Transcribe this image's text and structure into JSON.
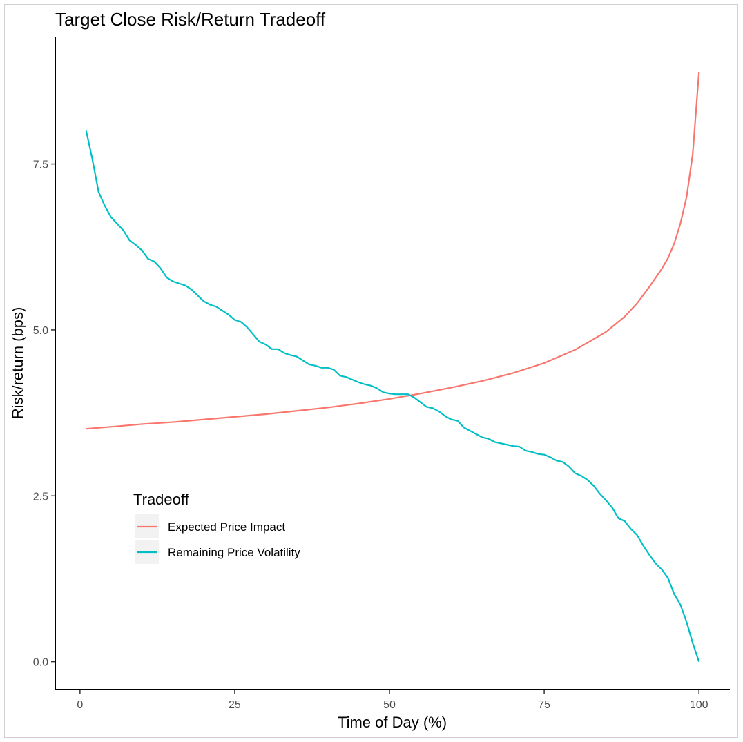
{
  "chart_data": {
    "type": "line",
    "title": "Target Close Risk/Return Tradeoff",
    "xlabel": "Time of Day (%)",
    "ylabel": "Risk/return (bps)",
    "xlim": [
      -4,
      105
    ],
    "ylim": [
      -0.42,
      9.42
    ],
    "x_ticks": [
      0,
      25,
      50,
      75,
      100
    ],
    "x_tick_labels": [
      "0",
      "25",
      "50",
      "75",
      "100"
    ],
    "y_ticks": [
      0,
      2.5,
      5,
      7.5
    ],
    "y_tick_labels": [
      "0.0",
      "2.5",
      "5.0",
      "7.5"
    ],
    "grid": false,
    "legend": {
      "title": "Tradeoff",
      "position": "bottom-left inside"
    },
    "series": [
      {
        "name": "Expected Price Impact",
        "color": "#F8766D",
        "x": [
          1,
          5,
          10,
          15,
          20,
          25,
          30,
          35,
          40,
          45,
          50,
          55,
          60,
          65,
          70,
          75,
          80,
          85,
          88,
          90,
          92,
          94,
          95,
          96,
          97,
          98,
          99,
          100
        ],
        "y": [
          3.51,
          3.54,
          3.58,
          3.61,
          3.65,
          3.69,
          3.73,
          3.78,
          3.83,
          3.89,
          3.96,
          4.04,
          4.13,
          4.23,
          4.35,
          4.5,
          4.7,
          4.97,
          5.2,
          5.4,
          5.65,
          5.92,
          6.08,
          6.3,
          6.6,
          7.0,
          7.65,
          8.88
        ]
      },
      {
        "name": "Remaining Price Volatility",
        "color": "#00BFC4",
        "x": [
          1,
          2,
          3,
          4,
          5,
          6,
          7,
          8,
          9,
          10,
          11,
          12,
          13,
          14,
          15,
          16,
          17,
          18,
          19,
          20,
          21,
          22,
          23,
          24,
          25,
          26,
          27,
          28,
          29,
          30,
          31,
          32,
          33,
          34,
          35,
          36,
          37,
          38,
          39,
          40,
          41,
          42,
          43,
          44,
          45,
          46,
          47,
          48,
          49,
          50,
          51,
          52,
          53,
          54,
          55,
          56,
          57,
          58,
          59,
          60,
          61,
          62,
          63,
          64,
          65,
          66,
          67,
          68,
          69,
          70,
          71,
          72,
          73,
          74,
          75,
          76,
          77,
          78,
          79,
          80,
          81,
          82,
          83,
          84,
          85,
          86,
          87,
          88,
          89,
          90,
          91,
          92,
          93,
          94,
          95,
          96,
          97,
          98,
          99,
          100
        ],
        "y": [
          8.0,
          7.57,
          7.08,
          6.87,
          6.7,
          6.6,
          6.5,
          6.35,
          6.28,
          6.2,
          6.07,
          6.03,
          5.93,
          5.79,
          5.73,
          5.7,
          5.67,
          5.61,
          5.52,
          5.43,
          5.38,
          5.35,
          5.29,
          5.23,
          5.15,
          5.12,
          5.04,
          4.93,
          4.82,
          4.78,
          4.71,
          4.71,
          4.65,
          4.62,
          4.6,
          4.54,
          4.48,
          4.46,
          4.43,
          4.43,
          4.4,
          4.31,
          4.29,
          4.25,
          4.21,
          4.18,
          4.16,
          4.12,
          4.06,
          4.04,
          4.03,
          4.03,
          4.03,
          3.98,
          3.91,
          3.84,
          3.82,
          3.77,
          3.7,
          3.65,
          3.63,
          3.53,
          3.48,
          3.43,
          3.38,
          3.36,
          3.31,
          3.29,
          3.27,
          3.25,
          3.24,
          3.18,
          3.16,
          3.13,
          3.12,
          3.08,
          3.03,
          3.01,
          2.94,
          2.84,
          2.8,
          2.74,
          2.65,
          2.53,
          2.43,
          2.32,
          2.16,
          2.12,
          2.0,
          1.91,
          1.75,
          1.61,
          1.48,
          1.39,
          1.26,
          1.02,
          0.86,
          0.6,
          0.28,
          0.0
        ]
      }
    ]
  }
}
